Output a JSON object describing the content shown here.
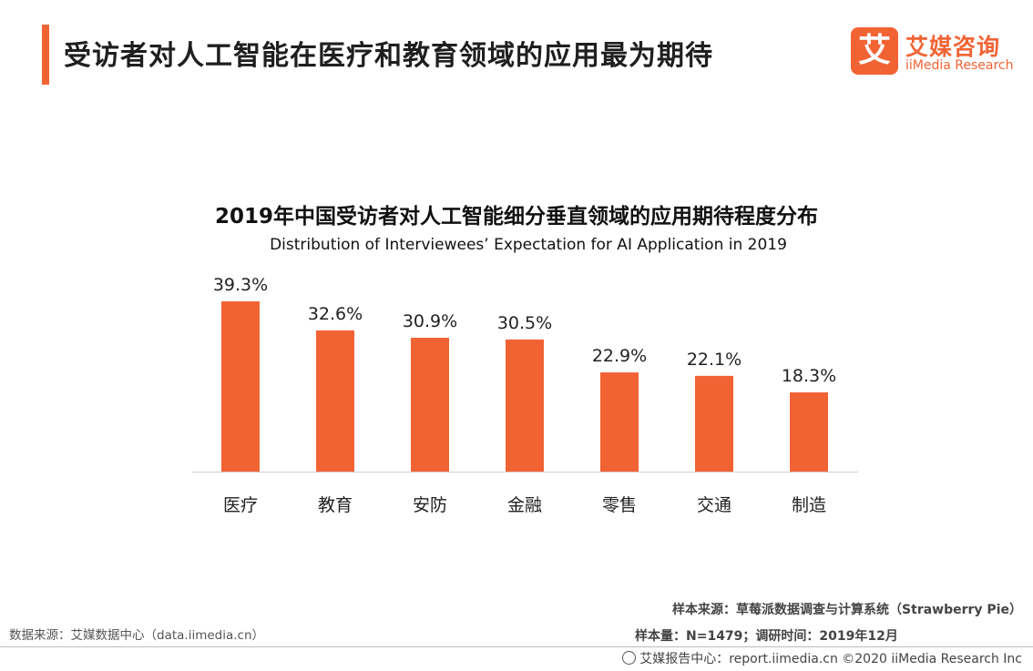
{
  "header": {
    "title": "受访者对人工智能在医疗和教育领域的应用最为期待",
    "accent_color": "#f26334"
  },
  "logo": {
    "mark": "艾",
    "cn": "艾媒咨询",
    "en": "iiMedia Research"
  },
  "chart_data": {
    "type": "bar",
    "title": "2019年中国受访者对人工智能细分垂直领域的应用期待程度分布",
    "subtitle": "Distribution of Interviewees’   Expectation for AI Application in 2019",
    "categories": [
      "医疗",
      "教育",
      "安防",
      "金融",
      "零售",
      "交通",
      "制造"
    ],
    "values": [
      39.3,
      32.6,
      30.9,
      30.5,
      22.9,
      22.1,
      18.3
    ],
    "value_labels": [
      "39.3%",
      "32.6%",
      "30.9%",
      "30.5%",
      "22.9%",
      "22.1%",
      "18.3%"
    ],
    "xlabel": "",
    "ylabel": "",
    "ylim": [
      0,
      40
    ],
    "grid": false,
    "bar_color": "#f26334"
  },
  "footer": {
    "data_source": "数据来源：艾媒数据中心（data.iimedia.cn）",
    "sample_source": "样本来源：草莓派数据调查与计算系统（Strawberry   Pie）",
    "sample_size": "样本量：N=1479；调研时间：2019年12月",
    "copyright": "艾媒报告中心：report.iimedia.cn  ©2020  iiMedia Research  Inc"
  }
}
